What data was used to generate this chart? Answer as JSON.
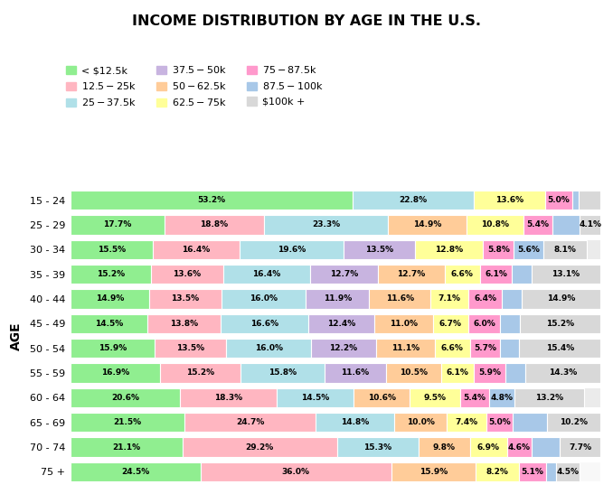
{
  "title": "INCOME DISTRIBUTION BY AGE IN THE U.S.",
  "age_groups": [
    "15 - 24",
    "25 - 29",
    "30 - 34",
    "35 - 39",
    "40 - 44",
    "45 - 49",
    "50 - 54",
    "55 - 59",
    "60 - 64",
    "65 - 69",
    "70 - 74",
    "75 +"
  ],
  "categories": [
    "< $12.5k",
    "$12.5 - $25k",
    "$25 - $37.5k",
    "$37.5 - $50k",
    "$50 - $62.5k",
    "$62.5 - $75k",
    "$75 - $87.5k",
    "$87.5 - $100k",
    "$100k +"
  ],
  "colors": [
    "#90EE90",
    "#FFB6C1",
    "#B0E0E8",
    "#C8B4E0",
    "#FFCC99",
    "#FFFF99",
    "#FF99CC",
    "#A8C8E8",
    "#D8D8D8"
  ],
  "data": [
    [
      53.2,
      0.0,
      22.8,
      0.0,
      0.0,
      13.6,
      5.0,
      1.2,
      4.2
    ],
    [
      17.7,
      18.8,
      23.3,
      0.0,
      14.9,
      10.8,
      5.4,
      5.1,
      4.1
    ],
    [
      15.5,
      16.4,
      19.6,
      13.5,
      0.0,
      12.8,
      5.8,
      5.6,
      8.1
    ],
    [
      15.2,
      13.6,
      16.4,
      12.7,
      12.7,
      6.6,
      6.1,
      3.6,
      13.1
    ],
    [
      14.9,
      13.5,
      16.0,
      11.9,
      11.6,
      7.1,
      6.4,
      3.7,
      14.9
    ],
    [
      14.5,
      13.8,
      16.6,
      12.4,
      11.0,
      6.7,
      6.0,
      3.8,
      15.2
    ],
    [
      15.9,
      13.5,
      16.0,
      12.2,
      11.1,
      6.6,
      5.7,
      3.6,
      15.4
    ],
    [
      16.9,
      15.2,
      15.8,
      11.6,
      10.5,
      6.1,
      5.9,
      3.7,
      14.3
    ],
    [
      20.6,
      18.3,
      14.5,
      0.0,
      10.6,
      9.5,
      5.4,
      4.8,
      13.2
    ],
    [
      21.5,
      24.7,
      14.8,
      0.0,
      10.0,
      7.4,
      5.0,
      6.4,
      10.2
    ],
    [
      21.1,
      29.2,
      15.3,
      0.0,
      9.8,
      6.9,
      4.6,
      5.4,
      7.7
    ],
    [
      24.5,
      36.0,
      0.0,
      0.0,
      15.9,
      8.2,
      5.1,
      1.8,
      4.5
    ]
  ],
  "data_labels": [
    [
      "53.2%",
      "",
      "22.8%",
      "",
      "",
      "13.6%",
      "5.0%",
      "",
      ""
    ],
    [
      "17.7%",
      "18.8%",
      "23.3%",
      "",
      "14.9%",
      "10.8%",
      "5.4%",
      "",
      "4.1%"
    ],
    [
      "15.5%",
      "16.4%",
      "19.6%",
      "13.5%",
      "",
      "12.8%",
      "5.8%",
      "5.6%",
      "8.1%"
    ],
    [
      "15.2%",
      "13.6%",
      "16.4%",
      "12.7%",
      "12.7%",
      "6.6%",
      "6.1%",
      "",
      "13.1%"
    ],
    [
      "14.9%",
      "13.5%",
      "16.0%",
      "11.9%",
      "11.6%",
      "7.1%",
      "6.4%",
      "",
      "14.9%"
    ],
    [
      "14.5%",
      "13.8%",
      "16.6%",
      "12.4%",
      "11.0%",
      "6.7%",
      "6.0%",
      "",
      "15.2%"
    ],
    [
      "15.9%",
      "13.5%",
      "16.0%",
      "12.2%",
      "11.1%",
      "6.6%",
      "5.7%",
      "",
      "15.4%"
    ],
    [
      "16.9%",
      "15.2%",
      "15.8%",
      "11.6%",
      "10.5%",
      "6.1%",
      "5.9%",
      "",
      "14.3%"
    ],
    [
      "20.6%",
      "18.3%",
      "14.5%",
      "",
      "10.6%",
      "9.5%",
      "5.4%",
      "4.8%",
      "13.2%"
    ],
    [
      "21.5%",
      "24.7%",
      "14.8%",
      "",
      "10.0%",
      "7.4%",
      "5.0%",
      "",
      "10.2%"
    ],
    [
      "21.1%",
      "29.2%",
      "15.3%",
      "",
      "9.8%",
      "6.9%",
      "4.6%",
      "",
      "7.7%"
    ],
    [
      "24.5%",
      "36.0%",
      "",
      "",
      "15.9%",
      "8.2%",
      "5.1%",
      "",
      "4.5%"
    ]
  ],
  "background_color": "#FFFFFF",
  "bar_bg_colors": [
    "#FFFFFF",
    "#F0F0F0"
  ],
  "ylabel": "AGE"
}
